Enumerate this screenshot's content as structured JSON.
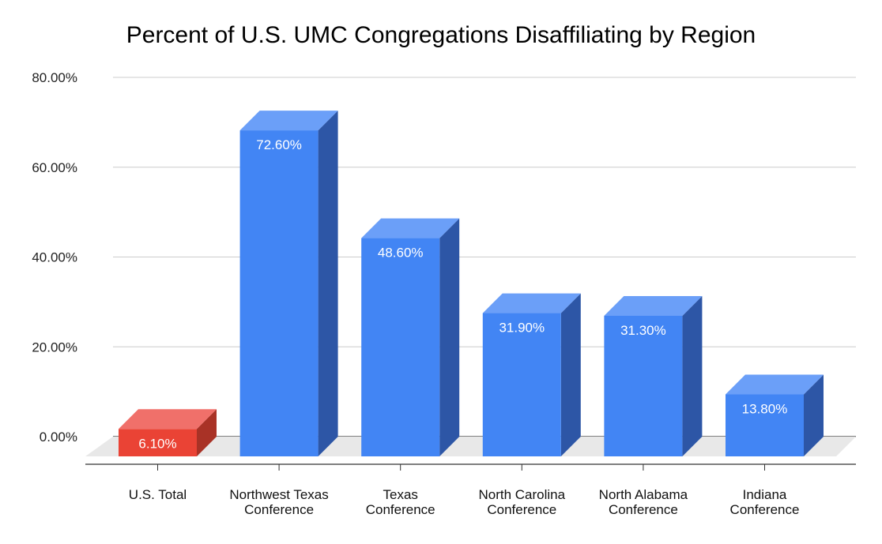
{
  "chart_data": {
    "type": "bar",
    "title": "Percent of U.S. UMC Congregations Disaffiliating by Region",
    "xlabel": "",
    "ylabel": "",
    "categories": [
      [
        "U.S. Total"
      ],
      [
        "Northwest Texas",
        "Conference"
      ],
      [
        "Texas",
        "Conference"
      ],
      [
        "North Carolina",
        "Conference"
      ],
      [
        "North Alabama",
        "Conference"
      ],
      [
        "Indiana",
        "Conference"
      ]
    ],
    "values": [
      6.1,
      72.6,
      48.6,
      31.9,
      31.3,
      13.8
    ],
    "data_labels": [
      "6.10%",
      "72.60%",
      "48.60%",
      "31.90%",
      "31.30%",
      "13.80%"
    ],
    "yticks": [
      0,
      20,
      40,
      60,
      80
    ],
    "ytick_labels": [
      "0.00%",
      "20.00%",
      "40.00%",
      "60.00%",
      "80.00%"
    ],
    "ylim": [
      0,
      80
    ],
    "grid": true,
    "style": "3d",
    "colors": [
      "#ea4335",
      "#4285f4",
      "#4285f4",
      "#4285f4",
      "#4285f4",
      "#4285f4"
    ],
    "side_colors": [
      "#a93226",
      "#2d56a6",
      "#2d56a6",
      "#2d56a6",
      "#2d56a6",
      "#2d56a6"
    ],
    "top_colors": [
      "#f0706a",
      "#6b9ff8",
      "#6b9ff8",
      "#6b9ff8",
      "#6b9ff8",
      "#6b9ff8"
    ]
  }
}
